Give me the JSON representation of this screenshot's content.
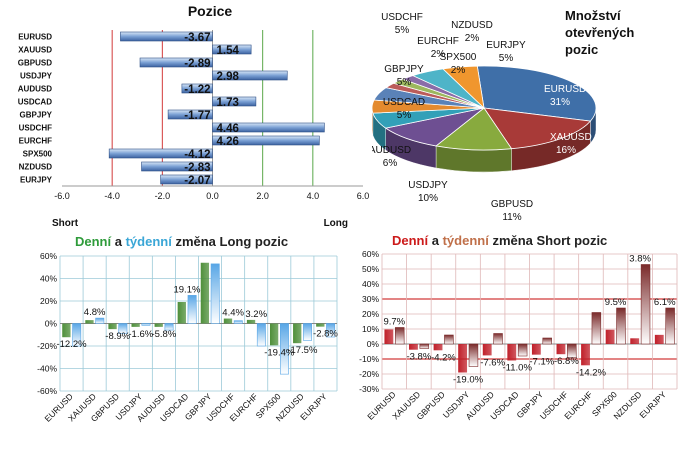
{
  "colors": {
    "bar_blue": "#5b84c4",
    "grid_red": "#d23a3a",
    "grid_green": "#5aa84a",
    "long_daily": "#4e8f3a",
    "long_weekly": "#58a6e6",
    "short_daily": "#c0202a",
    "short_weekly": "#7a2a2a",
    "title_green": "#2e9b3a",
    "title_cyan": "#3aa6d6",
    "title_red": "#cc1a1a",
    "title_brown": "#c0704a"
  },
  "chart_data": [
    {
      "id": "positions",
      "type": "bar",
      "orientation": "horizontal",
      "title": "Pozice",
      "categories": [
        "EURUSD",
        "XAUUSD",
        "GBPUSD",
        "USDJPY",
        "AUDUSD",
        "USDCAD",
        "GBPJPY",
        "USDCHF",
        "EURCHF",
        "SPX500",
        "NZDUSD",
        "EURJPY"
      ],
      "values": [
        -3.67,
        1.54,
        -2.89,
        2.98,
        -1.22,
        1.73,
        -1.77,
        4.46,
        4.26,
        -4.12,
        -2.83,
        -2.07
      ],
      "value_labels": [
        "-3.67",
        "1.54",
        "-2.89",
        "2.98",
        "-1.22",
        "1.73",
        "-1.77",
        "4.46",
        "4.26",
        "-4.12",
        "-2.83",
        "-2.07"
      ],
      "xlim": [
        -6,
        6
      ],
      "xticks": [
        "-6.0",
        "-4.0",
        "-2.0",
        "0.0",
        "2.0",
        "4.0",
        "6.0"
      ],
      "xtick_values": [
        -6,
        -4,
        -2,
        0,
        2,
        4,
        6
      ],
      "left_label": "Short",
      "right_label": "Long"
    },
    {
      "id": "open_positions",
      "type": "pie",
      "title_lines": [
        "Množství",
        "otevřených",
        "pozic"
      ],
      "slices": [
        {
          "name": "EURUSD",
          "value": 31,
          "label": "31%",
          "color": "#3f6fa8"
        },
        {
          "name": "XAUUSD",
          "value": 16,
          "label": "16%",
          "color": "#a83a38"
        },
        {
          "name": "GBPUSD",
          "value": 11,
          "label": "11%",
          "color": "#88aa3e"
        },
        {
          "name": "USDJPY",
          "value": 10,
          "label": "10%",
          "color": "#6e4f92"
        },
        {
          "name": "AUDUSD",
          "value": 6,
          "label": "6%",
          "color": "#32a0b8"
        },
        {
          "name": "USDCAD",
          "value": 5,
          "label": "5%",
          "color": "#e48a2e"
        },
        {
          "name": "GBPJPY",
          "value": 5,
          "label": "5%",
          "color": "#5a82b8"
        },
        {
          "name": "EURCHF",
          "value": 2,
          "label": "2%",
          "color": "#bb5c5a"
        },
        {
          "name": "SPX500",
          "value": 2,
          "label": "2%",
          "color": "#9cb85e"
        },
        {
          "name": "NZDUSD",
          "value": 2,
          "label": "2%",
          "color": "#8a6ca8"
        },
        {
          "name": "USDCHF",
          "value": 5,
          "label": "5%",
          "color": "#4eb4c8"
        },
        {
          "name": "EURJPY",
          "value": 5,
          "label": "5%",
          "color": "#f0962e"
        }
      ]
    },
    {
      "id": "long_change",
      "type": "bar",
      "title_parts": [
        "Denní",
        " a ",
        "týdenní",
        " změna Long pozic"
      ],
      "categories": [
        "EURUSD",
        "XAUUSD",
        "GBPUSD",
        "USDJPY",
        "AUDUSD",
        "USDCAD",
        "GBPJPY",
        "USDCHF",
        "EURCHF",
        "SPX500",
        "NZDUSD",
        "EURJPY"
      ],
      "series": [
        {
          "values": [
            -12.2,
            3.0,
            -5.0,
            -3.0,
            -3.0,
            19.1,
            54.0,
            4.4,
            3.2,
            -19.4,
            -17.5,
            -2.8
          ]
        },
        {
          "values": [
            -20.0,
            4.8,
            -8.9,
            -1.6,
            -5.8,
            25.0,
            53.0,
            2.5,
            -20.0,
            -45.0,
            -15.0,
            -12.0
          ]
        }
      ],
      "data_labels": [
        {
          "index": 0,
          "text": "-12.2%"
        },
        {
          "index": 1,
          "text": "4.8%"
        },
        {
          "index": 2,
          "text": "-8.9%"
        },
        {
          "index": 3,
          "text": "-1.6%"
        },
        {
          "index": 4,
          "text": "-5.8%"
        },
        {
          "index": 5,
          "text": "19.1%"
        },
        {
          "index": 7,
          "text": "4.4%"
        },
        {
          "index": 8,
          "text": "3.2%"
        },
        {
          "index": 9,
          "text": "-19.4%"
        },
        {
          "index": 10,
          "text": "-17.5%"
        },
        {
          "index": 11,
          "text": "-2.8%"
        }
      ],
      "ylim": [
        -60,
        60
      ],
      "yticks": [
        "60%",
        "40%",
        "20%",
        "0%",
        "-20%",
        "-40%",
        "-60%"
      ],
      "ytick_values": [
        60,
        40,
        20,
        0,
        -20,
        -40,
        -60
      ]
    },
    {
      "id": "short_change",
      "type": "bar",
      "title_parts": [
        "Denní",
        " a ",
        "týdenní",
        " změna Short pozic"
      ],
      "categories": [
        "EURUSD",
        "XAUUSD",
        "GBPUSD",
        "USDJPY",
        "AUDUSD",
        "USDCAD",
        "GBPJPY",
        "USDCHF",
        "EURCHF",
        "SPX500",
        "NZDUSD",
        "EURJPY"
      ],
      "series": [
        {
          "values": [
            9.7,
            -3.8,
            -4.2,
            -19.0,
            -7.6,
            -11.0,
            -7.1,
            -6.8,
            -14.2,
            9.5,
            3.8,
            6.1
          ]
        },
        {
          "values": [
            11.0,
            -3.0,
            6.0,
            -15.0,
            7.0,
            -8.0,
            4.0,
            -9.0,
            21.0,
            24.0,
            53.0,
            24.0
          ]
        }
      ],
      "data_labels": [
        {
          "index": 0,
          "text": "9.7%"
        },
        {
          "index": 1,
          "text": "-3.8%"
        },
        {
          "index": 2,
          "text": "-4.2%"
        },
        {
          "index": 3,
          "text": "-19.0%"
        },
        {
          "index": 4,
          "text": "-7.6%"
        },
        {
          "index": 5,
          "text": "-11.0%"
        },
        {
          "index": 6,
          "text": "-7.1%"
        },
        {
          "index": 7,
          "text": "-6.8%"
        },
        {
          "index": 8,
          "text": "-14.2%"
        },
        {
          "index": 9,
          "text": "9.5%"
        },
        {
          "index": 10,
          "text": "3.8%"
        },
        {
          "index": 11,
          "text": "6.1%"
        }
      ],
      "ylim": [
        -30,
        60
      ],
      "yticks": [
        "60%",
        "50%",
        "40%",
        "30%",
        "20%",
        "10%",
        "0%",
        "-10%",
        "-20%",
        "-30%"
      ],
      "ytick_values": [
        60,
        50,
        40,
        30,
        20,
        10,
        0,
        -10,
        -20,
        -30
      ]
    }
  ]
}
